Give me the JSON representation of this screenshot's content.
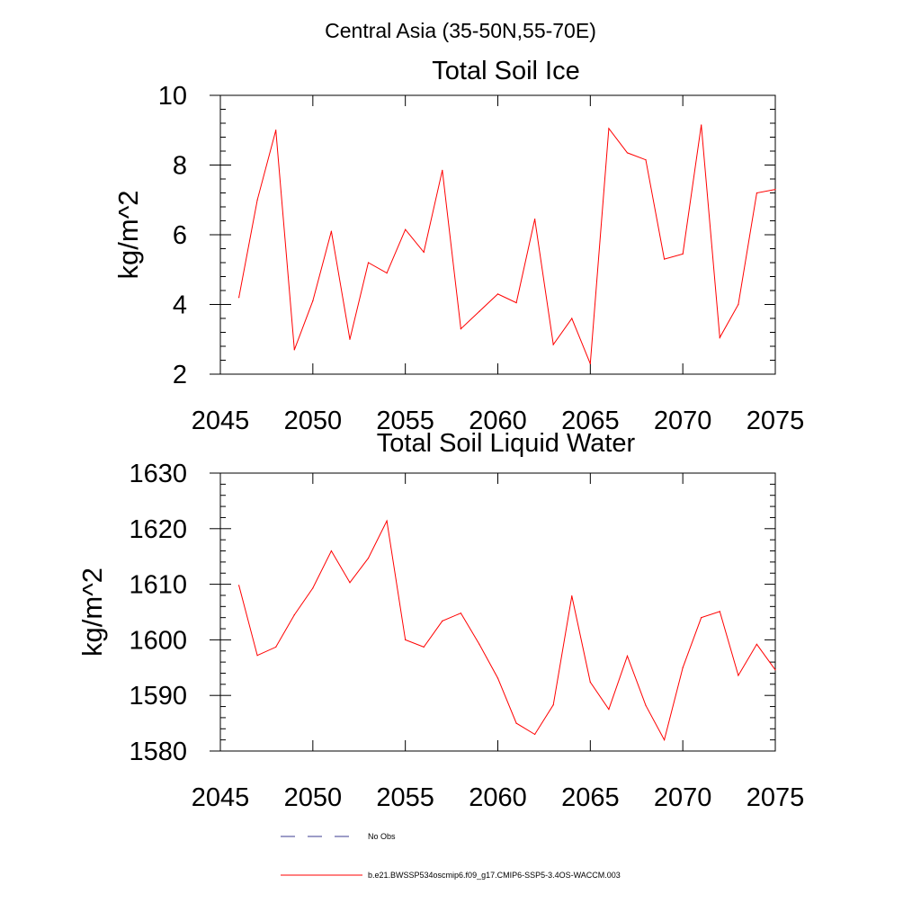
{
  "figure": {
    "title": "Central Asia (35-50N,55-70E)"
  },
  "legend": {
    "items": [
      {
        "label": "No Obs",
        "color": "#3b3b8f",
        "style": "dashed"
      },
      {
        "label": "b.e21.BWSSP534oscmip6.f09_g17.CMIP6-SSP5-3.4OS-WACCM.003",
        "color": "#ff0000",
        "style": "solid"
      }
    ]
  },
  "chart_data": [
    {
      "type": "line",
      "title": "Total Soil Ice",
      "xlabel": "",
      "ylabel": "kg/m^2",
      "xlim": [
        2045,
        2075
      ],
      "ylim": [
        2,
        10
      ],
      "xticks": [
        2045,
        2050,
        2055,
        2060,
        2065,
        2070,
        2075
      ],
      "yticks": [
        2,
        4,
        6,
        8,
        10
      ],
      "grid": false,
      "series": [
        {
          "name": "b.e21.BWSSP534oscmip6.f09_g17.CMIP6-SSP5-3.4OS-WACCM.003",
          "color": "#ff0000",
          "x": [
            2046,
            2047,
            2048,
            2049,
            2050,
            2051,
            2052,
            2053,
            2054,
            2055,
            2056,
            2057,
            2058,
            2059,
            2060,
            2061,
            2062,
            2063,
            2064,
            2065,
            2066,
            2067,
            2068,
            2069,
            2070,
            2071,
            2072,
            2073,
            2074,
            2075
          ],
          "values": [
            4.2,
            7.0,
            9.0,
            2.7,
            4.1,
            6.1,
            3.0,
            5.2,
            4.9,
            6.15,
            5.5,
            7.85,
            3.3,
            3.8,
            4.3,
            4.05,
            6.45,
            2.85,
            3.6,
            2.3,
            9.05,
            8.35,
            8.15,
            5.3,
            5.45,
            9.15,
            3.05,
            4.0,
            7.2,
            7.3
          ]
        }
      ]
    },
    {
      "type": "line",
      "title": "Total Soil Liquid Water",
      "xlabel": "",
      "ylabel": "kg/m^2",
      "xlim": [
        2045,
        2075
      ],
      "ylim": [
        1580,
        1630
      ],
      "xticks": [
        2045,
        2050,
        2055,
        2060,
        2065,
        2070,
        2075
      ],
      "yticks": [
        1580,
        1590,
        1600,
        1610,
        1620,
        1630
      ],
      "grid": false,
      "series": [
        {
          "name": "b.e21.BWSSP534oscmip6.f09_g17.CMIP6-SSP5-3.4OS-WACCM.003",
          "color": "#ff0000",
          "x": [
            2046,
            2047,
            2048,
            2049,
            2050,
            2051,
            2052,
            2053,
            2054,
            2055,
            2056,
            2057,
            2058,
            2059,
            2060,
            2061,
            2062,
            2063,
            2064,
            2065,
            2066,
            2067,
            2068,
            2069,
            2070,
            2071,
            2072,
            2073,
            2074,
            2075
          ],
          "values": [
            1609.8,
            1597.2,
            1598.7,
            1604.5,
            1609.3,
            1616.0,
            1610.3,
            1614.7,
            1621.4,
            1600.0,
            1598.7,
            1603.4,
            1604.8,
            1599.2,
            1593.1,
            1585.0,
            1583.0,
            1588.3,
            1607.9,
            1592.4,
            1587.5,
            1597.1,
            1588.2,
            1582.0,
            1595.0,
            1604.0,
            1605.1,
            1593.6,
            1599.2,
            1594.6
          ]
        }
      ]
    }
  ]
}
